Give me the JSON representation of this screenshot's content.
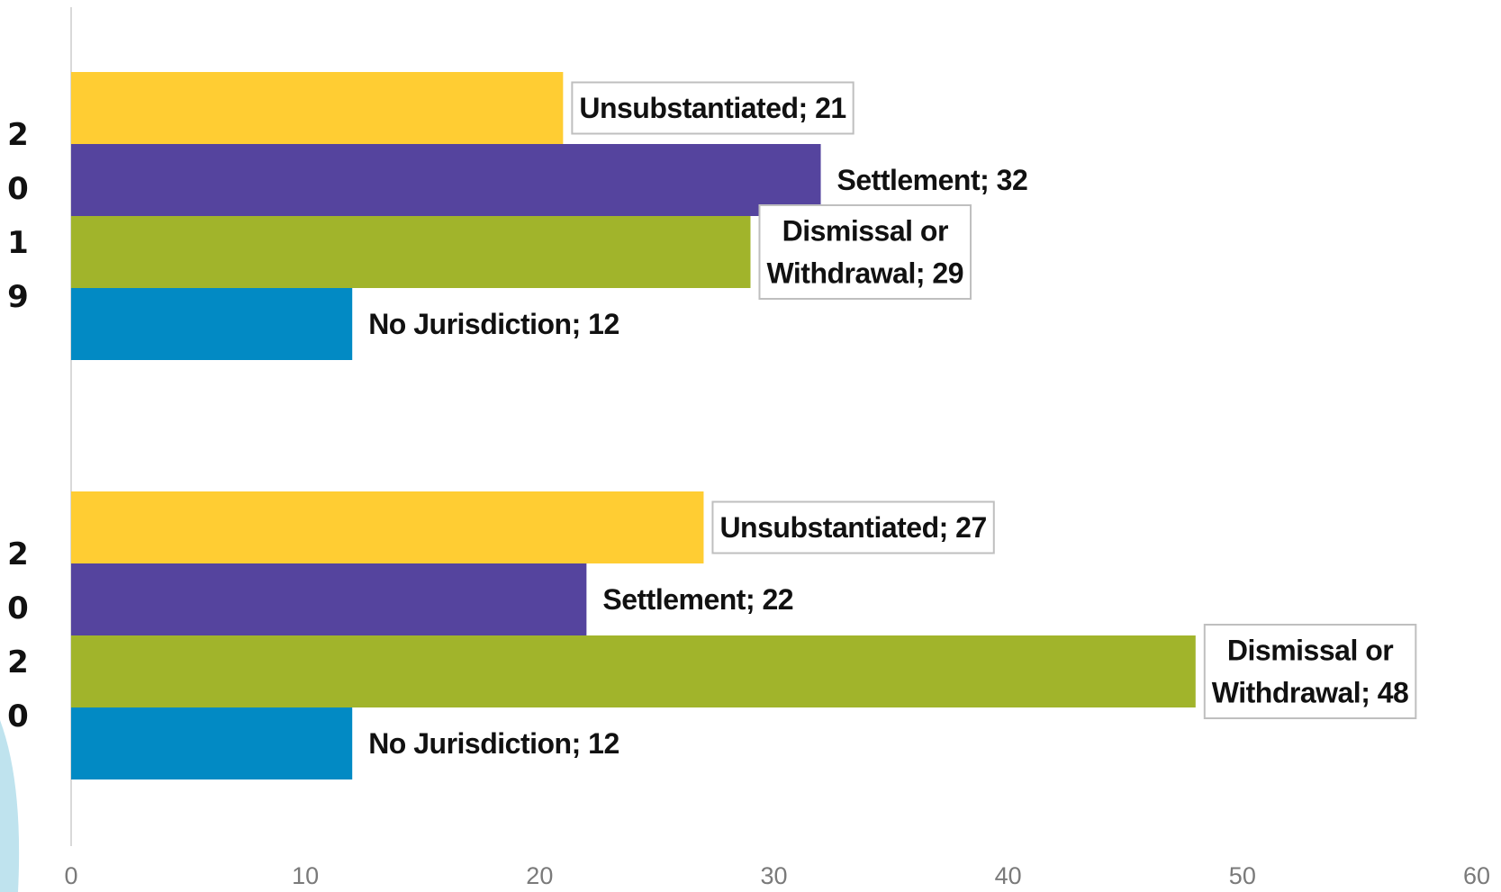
{
  "chart_data": {
    "type": "bar",
    "orientation": "horizontal",
    "xlim": [
      0,
      60
    ],
    "x_ticks": [
      0,
      10,
      20,
      30,
      40,
      50,
      60
    ],
    "grid": false,
    "legend": "none",
    "groups": [
      {
        "year": "2019",
        "year_chars": [
          "2",
          "0",
          "1",
          "9"
        ],
        "bars": [
          {
            "category": "Unsubstantiated",
            "value": 21,
            "label_lines": [
              "Unsubstantiated; 21"
            ],
            "color": "#FFCD33",
            "boxed": true
          },
          {
            "category": "Settlement",
            "value": 32,
            "label_lines": [
              "Settlement; 32"
            ],
            "color": "#55449E",
            "boxed": false
          },
          {
            "category": "Dismissal or Withdrawal",
            "value": 29,
            "label_lines": [
              "Dismissal or",
              "Withdrawal; 29"
            ],
            "color": "#A1B42B",
            "boxed": true
          },
          {
            "category": "No Jurisdiction",
            "value": 12,
            "label_lines": [
              "No Jurisdiction; 12"
            ],
            "color": "#028AC4",
            "boxed": false
          }
        ]
      },
      {
        "year": "2020",
        "year_chars": [
          "2",
          "0",
          "2",
          "0"
        ],
        "bars": [
          {
            "category": "Unsubstantiated",
            "value": 27,
            "label_lines": [
              "Unsubstantiated; 27"
            ],
            "color": "#FFCD33",
            "boxed": true
          },
          {
            "category": "Settlement",
            "value": 22,
            "label_lines": [
              "Settlement; 22"
            ],
            "color": "#55449E",
            "boxed": false
          },
          {
            "category": "Dismissal or Withdrawal",
            "value": 48,
            "label_lines": [
              "Dismissal or",
              "Withdrawal; 48"
            ],
            "color": "#A1B42B",
            "boxed": true
          },
          {
            "category": "No Jurisdiction",
            "value": 12,
            "label_lines": [
              "No Jurisdiction; 12"
            ],
            "color": "#028AC4",
            "boxed": false
          }
        ]
      }
    ]
  },
  "decoration": {
    "left_edge_color": "#BFE3EE",
    "axis_color": "#D9D9D9"
  }
}
